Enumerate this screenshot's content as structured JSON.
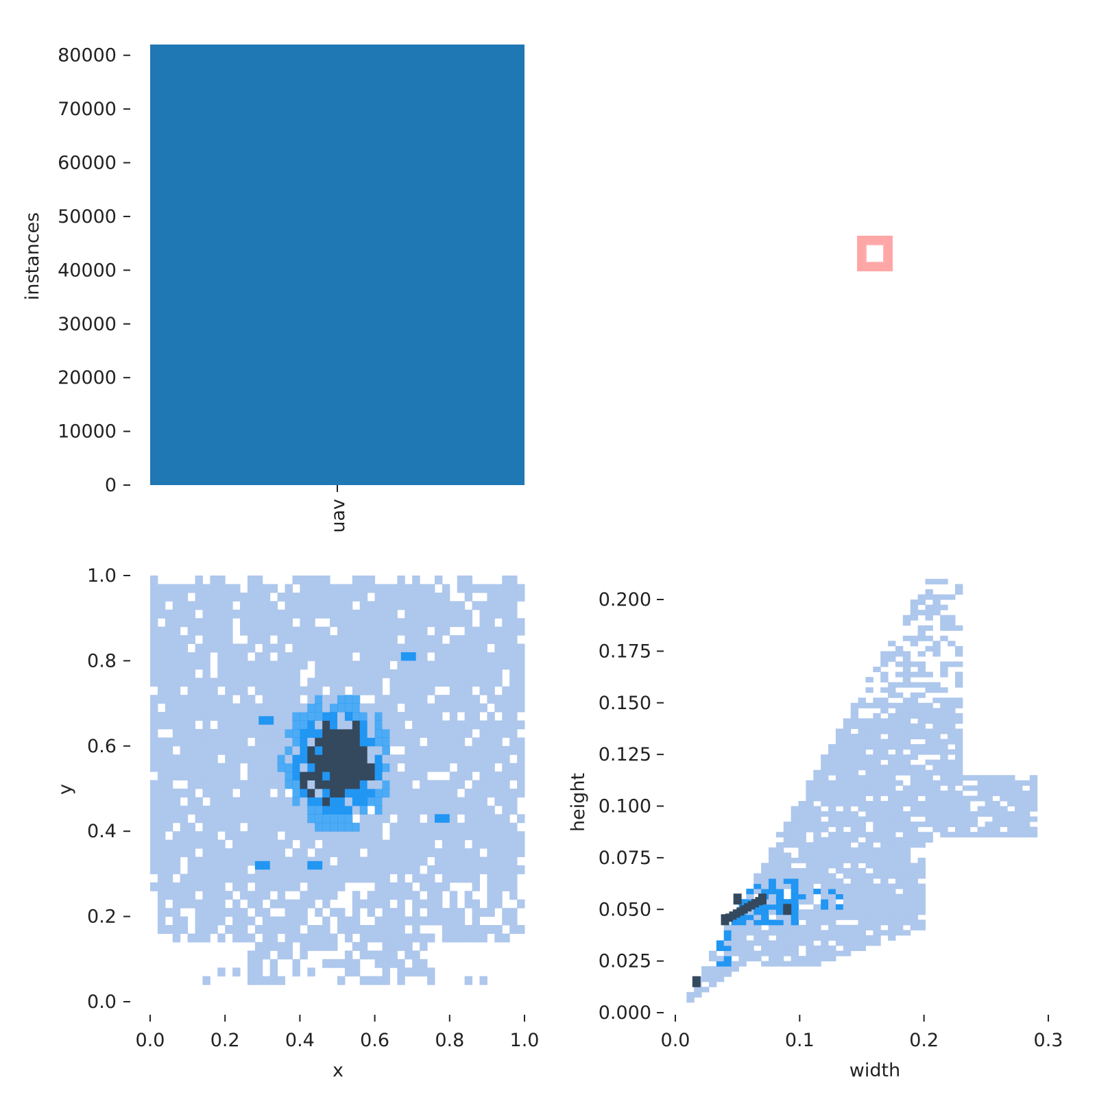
{
  "chart_data": [
    {
      "id": "class-count",
      "type": "bar",
      "categories": [
        "uav"
      ],
      "values": [
        82000
      ],
      "ylabel": "instances",
      "xlabel": "",
      "ylim": [
        0,
        82000
      ],
      "yticks": [
        0,
        10000,
        20000,
        30000,
        40000,
        50000,
        60000,
        70000,
        80000
      ],
      "color": "#1f77b4"
    },
    {
      "id": "box-shapes",
      "type": "scatter",
      "description_values": {
        "box_center": [
          0.5,
          0.5
        ],
        "box_size": [
          0.03,
          0.03
        ]
      },
      "color": "#ff0000"
    },
    {
      "id": "xy-hist",
      "type": "heatmap",
      "xlabel": "x",
      "ylabel": "y",
      "xlim": [
        0,
        1
      ],
      "ylim": [
        0,
        1
      ],
      "xticks": [
        "0.0",
        "0.2",
        "0.4",
        "0.6",
        "0.8",
        "1.0"
      ],
      "yticks": [
        "0.0",
        "0.2",
        "0.4",
        "0.6",
        "0.8",
        "1.0"
      ],
      "density_center": [
        0.5,
        0.56
      ],
      "hotspots": [
        [
          0.68,
          0.81
        ],
        [
          0.29,
          0.32
        ],
        [
          0.43,
          0.32
        ],
        [
          0.3,
          0.66
        ],
        [
          0.77,
          0.43
        ]
      ],
      "colors": [
        "#aec7ec",
        "#2196f3",
        "#34495e"
      ]
    },
    {
      "id": "wh-hist",
      "type": "heatmap",
      "xlabel": "width",
      "ylabel": "height",
      "xlim": [
        0,
        0.3
      ],
      "ylim": [
        0,
        0.2
      ],
      "xticks": [
        "0.0",
        "0.1",
        "0.2",
        "0.3"
      ],
      "yticks": [
        "0.000",
        "0.025",
        "0.050",
        "0.075",
        "0.100",
        "0.125",
        "0.150",
        "0.175",
        "0.200"
      ],
      "ridge_points": [
        [
          0.017,
          0.015
        ],
        [
          0.04,
          0.045
        ],
        [
          0.05,
          0.055
        ],
        [
          0.07,
          0.055
        ],
        [
          0.09,
          0.05
        ]
      ],
      "branch_points": [
        [
          0.2,
          0.09
        ],
        [
          0.29,
          0.11
        ]
      ],
      "colors": [
        "#aec7ec",
        "#2196f3",
        "#34495e"
      ]
    }
  ]
}
